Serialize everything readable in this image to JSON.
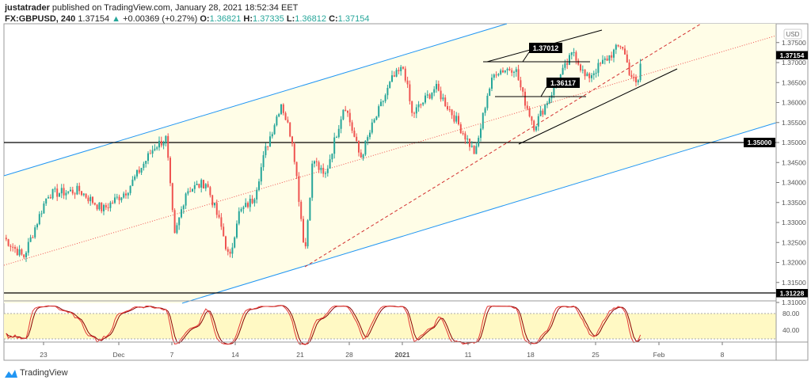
{
  "header": {
    "author": "justatrader",
    "published": "published on TradingView.com, January 28, 2021 18:52:34 EET",
    "symbol": "FX:GBPUSD, 240",
    "last": "1.37154",
    "change": "+0.00369 (+0.27%)",
    "o_label": "O:",
    "o": "1.36821",
    "h_label": "H:",
    "h": "1.37335",
    "l_label": "L:",
    "l": "1.36812",
    "c_label": "C:",
    "c": "1.37154"
  },
  "price_axis": {
    "currency": "USD",
    "ticks": [
      "1.37500",
      "1.37000",
      "1.36500",
      "1.36000",
      "1.35500",
      "1.35000",
      "1.34500",
      "1.34000",
      "1.33500",
      "1.33000",
      "1.32500",
      "1.32000",
      "1.31500",
      "1.31000"
    ],
    "tick_values": [
      1.375,
      1.37,
      1.365,
      1.36,
      1.355,
      1.35,
      1.345,
      1.34,
      1.335,
      1.33,
      1.325,
      1.32,
      1.315,
      1.31
    ],
    "last_label": "1.37154",
    "level_labels": [
      "1.35000",
      "1.31228"
    ],
    "levels": [
      1.35,
      1.31228
    ]
  },
  "stoch_axis": {
    "ticks": [
      "80.00",
      "40.00"
    ]
  },
  "time_axis": {
    "labels": [
      "23",
      "Dec",
      "7",
      "14",
      "21",
      "28",
      "2021",
      "11",
      "18",
      "25",
      "Feb",
      "8"
    ],
    "bold": "2021"
  },
  "annotations": [
    "1.37012",
    "1.36117"
  ],
  "brand": "TradingView",
  "colors": {
    "up": "#26a69a",
    "down": "#ef5350",
    "channel": "#2196f3",
    "band": "#fffde7",
    "k": "#e53935",
    "d": "#8b0000"
  },
  "chart_data": {
    "type": "candlestick",
    "timeframe": "240",
    "keypoints": [
      [
        "2020-11-18T15:00",
        1.3262
      ],
      [
        "2020-11-20T19:00",
        1.3213
      ],
      [
        "2020-11-23T11:00",
        1.3371
      ],
      [
        "2020-11-26T23:00",
        1.338
      ],
      [
        "2020-11-29T13:00",
        1.3332
      ],
      [
        "2020-12-02T05:00",
        1.338
      ],
      [
        "2020-12-05T06:00",
        1.349
      ],
      [
        "2020-12-06T13:00",
        1.351
      ],
      [
        "2020-12-07T11:00",
        1.3262
      ],
      [
        "2020-12-08T18:00",
        1.338
      ],
      [
        "2020-12-10T23:00",
        1.34
      ],
      [
        "2020-12-12T17:00",
        1.3282
      ],
      [
        "2020-12-13T13:00",
        1.3203
      ],
      [
        "2020-12-14T11:00",
        1.332
      ],
      [
        "2020-12-16T05:00",
        1.336
      ],
      [
        "2020-12-17T12:00",
        1.348
      ],
      [
        "2020-12-19T06:00",
        1.3599
      ],
      [
        "2020-12-20T13:00",
        1.35
      ],
      [
        "2020-12-21T21:00",
        1.3223
      ],
      [
        "2020-12-22T18:00",
        1.3461
      ],
      [
        "2020-12-24T01:00",
        1.3411
      ],
      [
        "2020-12-26T06:00",
        1.3599
      ],
      [
        "2020-12-28T00:00",
        1.346
      ],
      [
        "2020-12-29T07:00",
        1.354
      ],
      [
        "2020-12-31T12:00",
        1.3658
      ],
      [
        "2021-01-01T19:00",
        1.3688
      ],
      [
        "2021-01-02T17:00",
        1.3569
      ],
      [
        "2021-01-05T07:00",
        1.3638
      ],
      [
        "2021-01-07T12:00",
        1.3559
      ],
      [
        "2021-01-09T17:00",
        1.347
      ],
      [
        "2021-01-11T00:00",
        1.3619
      ],
      [
        "2021-01-11T22:00",
        1.3678
      ],
      [
        "2021-01-14T02:00",
        1.3688
      ],
      [
        "2021-01-14T22:00",
        1.3619
      ],
      [
        "2021-01-16T05:00",
        1.354
      ],
      [
        "2021-01-18T10:00",
        1.3638
      ],
      [
        "2021-01-20T14:00",
        1.3728
      ],
      [
        "2021-01-21T22:00",
        1.3658
      ],
      [
        "2021-01-23T17:00",
        1.3698
      ],
      [
        "2021-01-25T21:00",
        1.3747
      ],
      [
        "2021-01-26T17:00",
        1.3678
      ],
      [
        "2021-01-27T14:00",
        1.3638
      ],
      [
        "2021-01-28T01:00",
        1.3715
      ]
    ],
    "ylim": [
      1.309,
      1.3775
    ],
    "stoch_levels": [
      80,
      40
    ]
  }
}
